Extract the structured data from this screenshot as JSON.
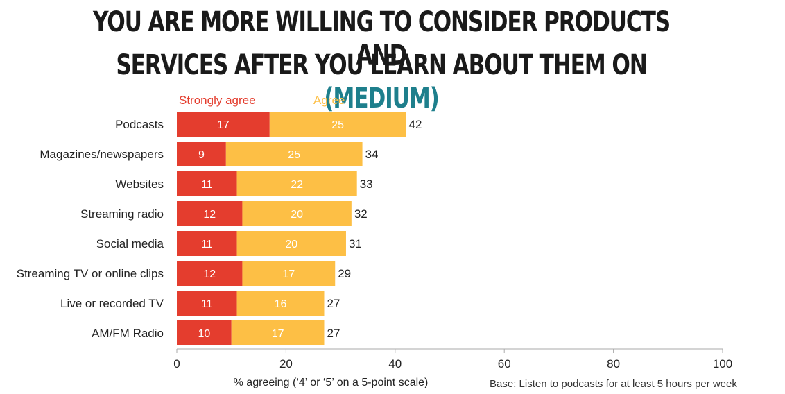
{
  "title": {
    "line1": "YOU ARE MORE WILLING TO CONSIDER PRODUCTS AND",
    "line2": "SERVICES AFTER YOU LEARN ABOUT THEM ON",
    "highlight": "(MEDIUM)",
    "highlight_color": "#1e7f8c"
  },
  "chart_data": {
    "type": "bar",
    "orientation": "horizontal",
    "stacked": true,
    "categories": [
      "Podcasts",
      "Magazines/newspapers",
      "Websites",
      "Streaming radio",
      "Social media",
      "Streaming TV or online clips",
      "Live or recorded TV",
      "AM/FM Radio"
    ],
    "series": [
      {
        "name": "Strongly agree",
        "color": "#e43d2e",
        "label_color": "#e43d2e",
        "values": [
          17,
          9,
          11,
          12,
          11,
          12,
          11,
          10
        ]
      },
      {
        "name": "Agree",
        "color": "#fdbf45",
        "label_color": "#fdbf45",
        "values": [
          25,
          25,
          22,
          20,
          20,
          17,
          16,
          17
        ]
      }
    ],
    "totals": [
      42,
      34,
      33,
      32,
      31,
      29,
      27,
      27
    ],
    "xlim": [
      0,
      100
    ],
    "xticks": [
      0,
      20,
      40,
      60,
      80,
      100
    ],
    "xlabel": "% agreeing (‘4’ or ‘5’ on a 5-point scale)",
    "grid": false
  },
  "footnote": "Base: Listen to podcasts for at least 5 hours per week"
}
